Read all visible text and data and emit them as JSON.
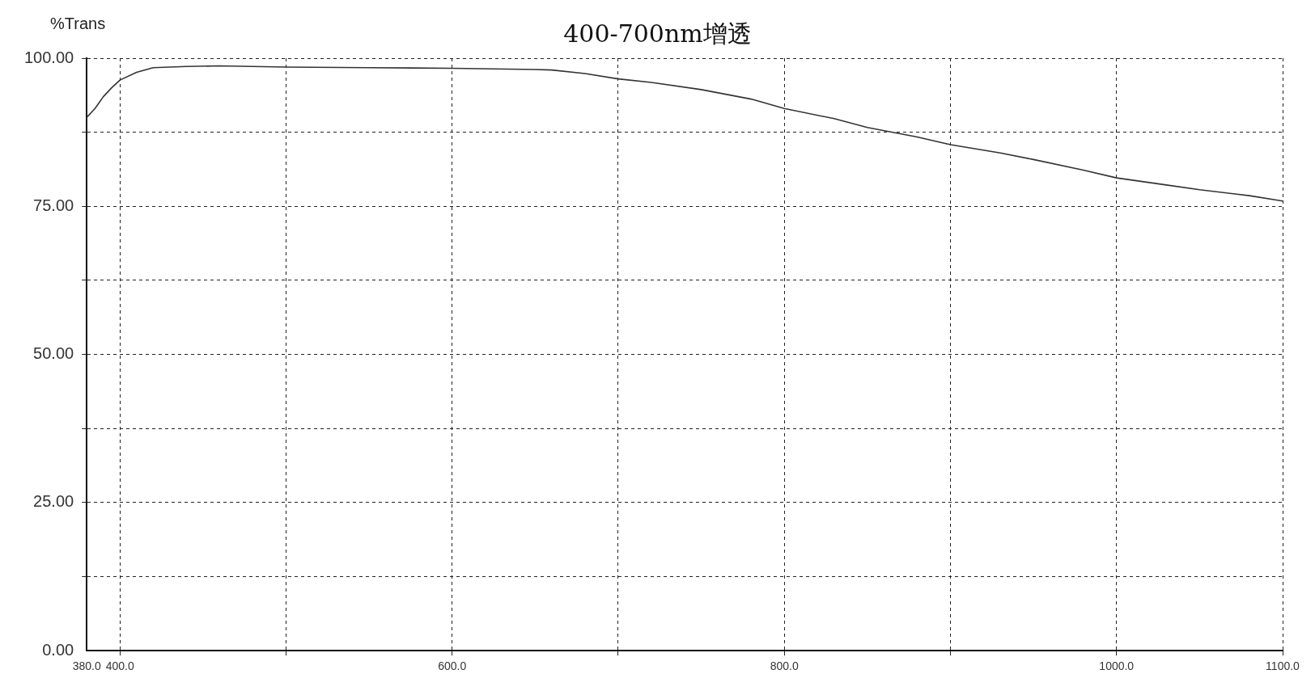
{
  "chart_data": {
    "type": "line",
    "title": "400-700nm增透",
    "ylabel": "%Trans",
    "x": [
      380,
      385,
      390,
      395,
      400,
      410,
      420,
      440,
      460,
      480,
      500,
      550,
      600,
      650,
      660,
      680,
      700,
      720,
      750,
      780,
      800,
      830,
      850,
      880,
      900,
      930,
      950,
      980,
      1000,
      1030,
      1050,
      1080,
      1100
    ],
    "series": [
      {
        "color": "#333333",
        "values": [
          90,
          91.5,
          93.5,
          95,
          96.3,
          97.6,
          98.4,
          98.6,
          98.7,
          98.6,
          98.5,
          98.4,
          98.3,
          98.1,
          98,
          97.4,
          96.5,
          95.9,
          94.7,
          93.1,
          91.5,
          89.8,
          88.3,
          86.7,
          85.4,
          84,
          82.9,
          81.1,
          79.8,
          78.6,
          77.8,
          76.8,
          75.9
        ]
      }
    ],
    "xlim": [
      380,
      1100
    ],
    "xticks": [
      {
        "value": 380,
        "label": "380.0"
      },
      {
        "value": 400,
        "label": "400.0"
      },
      {
        "value": 500,
        "label": null
      },
      {
        "value": 600,
        "label": "600.0"
      },
      {
        "value": 700,
        "label": null
      },
      {
        "value": 800,
        "label": "800.0"
      },
      {
        "value": 900,
        "label": null
      },
      {
        "value": 1000,
        "label": "1000.0"
      },
      {
        "value": 1100,
        "label": "1100.0"
      }
    ],
    "ylim": [
      0,
      100
    ],
    "yticks": [
      {
        "value": 0,
        "label": "0.00"
      },
      {
        "value": 12.5,
        "label": null
      },
      {
        "value": 25,
        "label": "25.00"
      },
      {
        "value": 37.5,
        "label": null
      },
      {
        "value": 50,
        "label": "50.00"
      },
      {
        "value": 62.5,
        "label": null
      },
      {
        "value": 75,
        "label": "75.00"
      },
      {
        "value": 87.5,
        "label": null
      },
      {
        "value": 100,
        "label": "100.00"
      }
    ],
    "grid": true,
    "legend": false,
    "marker": "none",
    "line_style": "solid"
  }
}
